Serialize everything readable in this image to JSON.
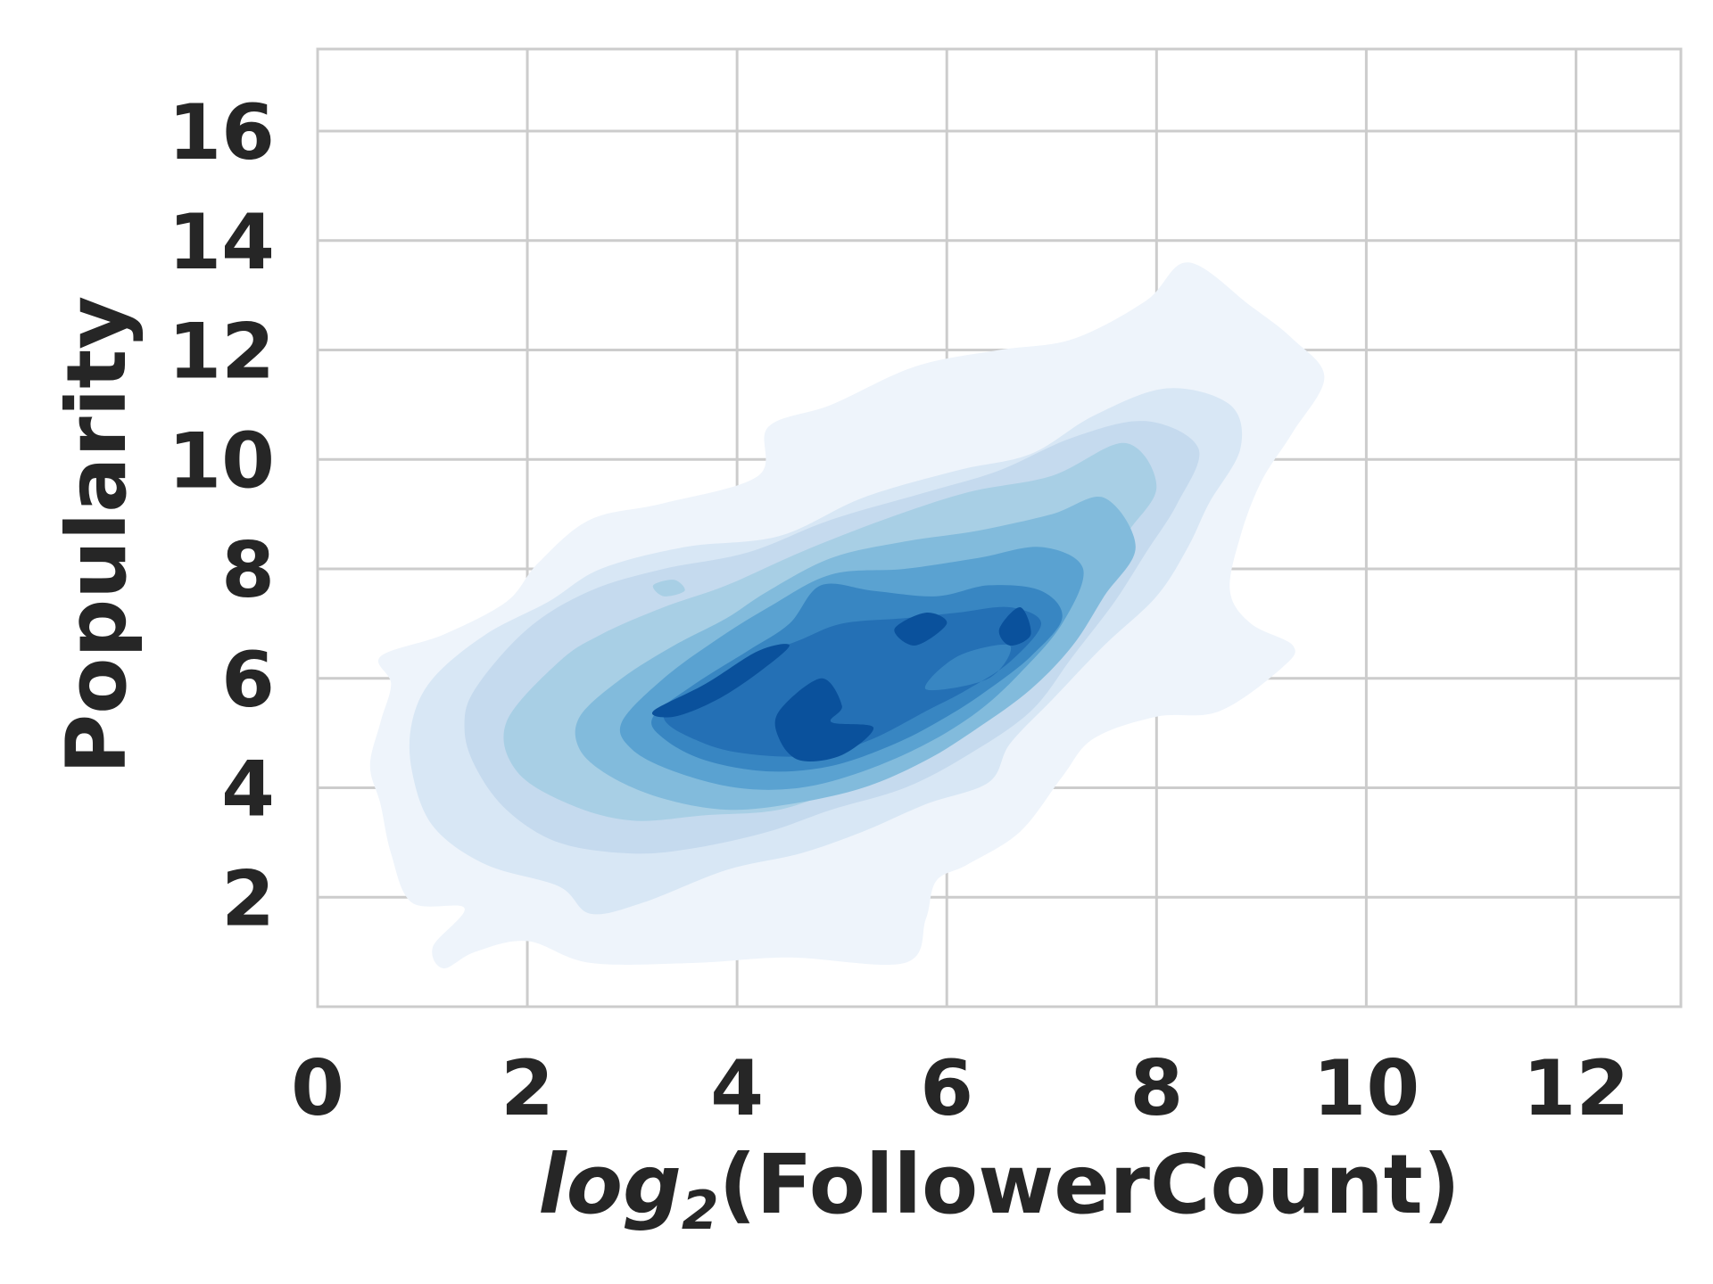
{
  "chart_data": {
    "type": "kde_contour",
    "xlabel_math": "log",
    "xlabel_sub": "2",
    "xlabel_rest": "(FollowerCount)",
    "ylabel": "Popularity",
    "xlim": [
      0,
      13
    ],
    "ylim": [
      0,
      17.5
    ],
    "xticks": [
      0,
      2,
      4,
      6,
      8,
      10,
      12
    ],
    "yticks": [
      2,
      4,
      6,
      8,
      10,
      12,
      14,
      16
    ],
    "grid": true,
    "palette": [
      "#eef4fb",
      "#d8e7f5",
      "#c5daee",
      "#a8cfe5",
      "#82bbdc",
      "#5aa2d1",
      "#3886c2",
      "#2470b5",
      "#0a519c"
    ],
    "levels": [
      {
        "level": 1,
        "color": "#eef4fb",
        "polygons": [
          [
            [
              0.6,
              6.4
            ],
            [
              1.2,
              6.8
            ],
            [
              1.8,
              7.4
            ],
            [
              2.1,
              8.1
            ],
            [
              2.6,
              8.9
            ],
            [
              3.3,
              9.2
            ],
            [
              4.2,
              9.7
            ],
            [
              4.3,
              10.6
            ],
            [
              4.9,
              11.0
            ],
            [
              5.7,
              11.7
            ],
            [
              6.5,
              12.0
            ],
            [
              7.2,
              12.2
            ],
            [
              7.9,
              12.9
            ],
            [
              8.3,
              13.6
            ],
            [
              8.9,
              12.8
            ],
            [
              9.3,
              12.2
            ],
            [
              9.6,
              11.5
            ],
            [
              9.3,
              10.5
            ],
            [
              9.0,
              9.6
            ],
            [
              8.8,
              8.6
            ],
            [
              8.7,
              7.6
            ],
            [
              8.9,
              7.0
            ],
            [
              9.3,
              6.6
            ],
            [
              9.2,
              6.2
            ],
            [
              8.6,
              5.4
            ],
            [
              8.0,
              5.3
            ],
            [
              7.4,
              4.9
            ],
            [
              7.1,
              4.2
            ],
            [
              6.7,
              3.2
            ],
            [
              6.2,
              2.6
            ],
            [
              5.9,
              2.3
            ],
            [
              5.8,
              1.6
            ],
            [
              5.6,
              0.8
            ],
            [
              4.5,
              0.9
            ],
            [
              3.6,
              0.8
            ],
            [
              2.6,
              0.8
            ],
            [
              2.0,
              1.2
            ],
            [
              1.5,
              1.0
            ],
            [
              1.2,
              0.7
            ],
            [
              1.1,
              1.1
            ],
            [
              1.4,
              1.8
            ],
            [
              0.9,
              1.9
            ],
            [
              0.7,
              2.8
            ],
            [
              0.6,
              3.7
            ],
            [
              0.5,
              4.4
            ],
            [
              0.6,
              5.2
            ],
            [
              0.7,
              5.9
            ]
          ]
        ]
      },
      {
        "level": 2,
        "color": "#d8e7f5",
        "polygons": [
          [
            [
              1.1,
              6.0
            ],
            [
              1.6,
              6.8
            ],
            [
              2.2,
              7.4
            ],
            [
              2.7,
              8.0
            ],
            [
              3.5,
              8.4
            ],
            [
              4.4,
              8.6
            ],
            [
              5.2,
              9.3
            ],
            [
              6.1,
              9.8
            ],
            [
              6.8,
              10.1
            ],
            [
              7.4,
              10.8
            ],
            [
              8.1,
              11.3
            ],
            [
              8.7,
              11.0
            ],
            [
              8.8,
              10.2
            ],
            [
              8.5,
              9.2
            ],
            [
              8.3,
              8.4
            ],
            [
              8.0,
              7.5
            ],
            [
              7.5,
              6.6
            ],
            [
              7.0,
              5.6
            ],
            [
              6.6,
              4.8
            ],
            [
              6.4,
              4.1
            ],
            [
              5.8,
              3.7
            ],
            [
              5.2,
              3.2
            ],
            [
              4.6,
              2.8
            ],
            [
              3.9,
              2.5
            ],
            [
              3.1,
              1.9
            ],
            [
              2.6,
              1.7
            ],
            [
              2.3,
              2.2
            ],
            [
              1.6,
              2.6
            ],
            [
              1.1,
              3.3
            ],
            [
              0.9,
              4.3
            ],
            [
              0.9,
              5.2
            ]
          ]
        ]
      },
      {
        "level": 3,
        "color": "#c5daee",
        "polygons": [
          [
            [
              1.5,
              5.8
            ],
            [
              2.0,
              6.9
            ],
            [
              2.6,
              7.6
            ],
            [
              3.3,
              8.0
            ],
            [
              4.1,
              8.3
            ],
            [
              4.9,
              8.9
            ],
            [
              5.8,
              9.4
            ],
            [
              6.5,
              9.8
            ],
            [
              7.2,
              10.4
            ],
            [
              7.9,
              10.7
            ],
            [
              8.4,
              10.2
            ],
            [
              8.2,
              9.2
            ],
            [
              7.9,
              8.3
            ],
            [
              7.6,
              7.4
            ],
            [
              7.2,
              6.4
            ],
            [
              6.8,
              5.4
            ],
            [
              6.2,
              4.6
            ],
            [
              5.6,
              4.0
            ],
            [
              4.9,
              3.6
            ],
            [
              4.3,
              3.2
            ],
            [
              3.6,
              2.9
            ],
            [
              3.0,
              2.8
            ],
            [
              2.3,
              3.0
            ],
            [
              1.8,
              3.6
            ],
            [
              1.5,
              4.4
            ],
            [
              1.4,
              5.1
            ]
          ]
        ]
      },
      {
        "level": 4,
        "color": "#a8cfe5",
        "polygons": [
          [
            [
              1.8,
              5.2
            ],
            [
              2.3,
              6.3
            ],
            [
              2.7,
              6.8
            ],
            [
              3.3,
              7.3
            ],
            [
              3.9,
              7.7
            ],
            [
              4.6,
              8.3
            ],
            [
              5.4,
              8.9
            ],
            [
              6.2,
              9.4
            ],
            [
              7.0,
              9.7
            ],
            [
              7.7,
              10.3
            ],
            [
              8.0,
              9.5
            ],
            [
              7.7,
              8.6
            ],
            [
              7.4,
              7.6
            ],
            [
              7.1,
              6.7
            ],
            [
              6.6,
              5.9
            ],
            [
              6.1,
              5.1
            ],
            [
              5.6,
              4.5
            ],
            [
              5.0,
              4.0
            ],
            [
              4.4,
              3.6
            ],
            [
              3.7,
              3.5
            ],
            [
              3.0,
              3.4
            ],
            [
              2.4,
              3.7
            ],
            [
              1.9,
              4.3
            ]
          ]
        ],
        "holes": [
          [
            [
              3.2,
              7.7
            ],
            [
              3.4,
              7.8
            ],
            [
              3.5,
              7.6
            ],
            [
              3.3,
              7.5
            ]
          ]
        ]
      },
      {
        "level": 5,
        "color": "#82bbdc",
        "polygons": [
          [
            [
              2.5,
              5.3
            ],
            [
              2.9,
              6.0
            ],
            [
              3.4,
              6.6
            ],
            [
              3.9,
              7.1
            ],
            [
              4.3,
              7.6
            ],
            [
              4.9,
              8.2
            ],
            [
              5.6,
              8.5
            ],
            [
              6.3,
              8.7
            ],
            [
              7.0,
              9.0
            ],
            [
              7.5,
              9.3
            ],
            [
              7.8,
              8.4
            ],
            [
              7.5,
              7.5
            ],
            [
              7.2,
              6.6
            ],
            [
              6.8,
              5.8
            ],
            [
              6.3,
              5.1
            ],
            [
              5.8,
              4.5
            ],
            [
              5.2,
              4.0
            ],
            [
              4.5,
              3.7
            ],
            [
              3.9,
              3.6
            ],
            [
              3.3,
              3.8
            ],
            [
              2.8,
              4.2
            ],
            [
              2.5,
              4.7
            ]
          ]
        ]
      },
      {
        "level": 6,
        "color": "#5aa2d1",
        "polygons": [
          [
            [
              2.9,
              5.2
            ],
            [
              3.3,
              6.0
            ],
            [
              3.8,
              6.7
            ],
            [
              4.3,
              7.3
            ],
            [
              4.9,
              7.9
            ],
            [
              5.6,
              8.0
            ],
            [
              6.3,
              8.2
            ],
            [
              6.9,
              8.4
            ],
            [
              7.3,
              8.0
            ],
            [
              7.1,
              7.0
            ],
            [
              6.7,
              6.1
            ],
            [
              6.3,
              5.4
            ],
            [
              5.8,
              4.8
            ],
            [
              5.2,
              4.3
            ],
            [
              4.6,
              4.0
            ],
            [
              4.0,
              4.0
            ],
            [
              3.4,
              4.3
            ],
            [
              3.0,
              4.7
            ]
          ]
        ]
      },
      {
        "level": 7,
        "color": "#3886c2",
        "polygons": [
          [
            [
              3.2,
              5.3
            ],
            [
              3.6,
              5.9
            ],
            [
              4.1,
              6.5
            ],
            [
              4.5,
              7.0
            ],
            [
              4.8,
              7.7
            ],
            [
              5.3,
              7.6
            ],
            [
              5.9,
              7.5
            ],
            [
              6.4,
              7.7
            ],
            [
              6.9,
              7.6
            ],
            [
              7.1,
              7.1
            ],
            [
              6.8,
              6.4
            ],
            [
              6.4,
              5.8
            ],
            [
              6.0,
              5.3
            ],
            [
              5.5,
              4.8
            ],
            [
              4.9,
              4.4
            ],
            [
              4.3,
              4.3
            ],
            [
              3.7,
              4.5
            ],
            [
              3.3,
              4.9
            ]
          ]
        ]
      },
      {
        "level": 8,
        "color": "#2470b5",
        "polygons": [
          [
            [
              3.3,
              5.3
            ],
            [
              3.7,
              5.9
            ],
            [
              4.2,
              6.4
            ],
            [
              4.6,
              6.7
            ],
            [
              5.0,
              7.0
            ],
            [
              5.6,
              7.1
            ],
            [
              6.1,
              7.2
            ],
            [
              6.6,
              7.3
            ],
            [
              6.9,
              7.0
            ],
            [
              6.6,
              6.3
            ],
            [
              6.2,
              5.8
            ],
            [
              5.8,
              5.4
            ],
            [
              5.3,
              4.9
            ],
            [
              4.8,
              4.6
            ],
            [
              4.2,
              4.6
            ],
            [
              3.7,
              4.8
            ]
          ]
        ],
        "holes": [
          [
            [
              5.8,
              5.8
            ],
            [
              6.4,
              6.0
            ],
            [
              6.6,
              6.6
            ],
            [
              6.1,
              6.4
            ]
          ]
        ]
      },
      {
        "level": 9,
        "color": "#0a519c",
        "polygons": [
          [
            [
              3.2,
              5.4
            ],
            [
              3.7,
              5.9
            ],
            [
              4.2,
              6.5
            ],
            [
              4.5,
              6.6
            ],
            [
              4.2,
              6.1
            ],
            [
              3.8,
              5.6
            ],
            [
              3.4,
              5.3
            ]
          ],
          [
            [
              4.4,
              5.4
            ],
            [
              4.8,
              6.0
            ],
            [
              5.0,
              5.5
            ],
            [
              4.9,
              5.2
            ],
            [
              5.3,
              5.1
            ],
            [
              5.0,
              4.6
            ],
            [
              4.6,
              4.5
            ],
            [
              4.4,
              4.9
            ]
          ],
          [
            [
              5.5,
              6.9
            ],
            [
              5.8,
              7.2
            ],
            [
              6.0,
              7.0
            ],
            [
              5.7,
              6.6
            ]
          ],
          [
            [
              6.5,
              6.9
            ],
            [
              6.7,
              7.3
            ],
            [
              6.8,
              6.8
            ],
            [
              6.6,
              6.6
            ]
          ]
        ]
      }
    ]
  }
}
